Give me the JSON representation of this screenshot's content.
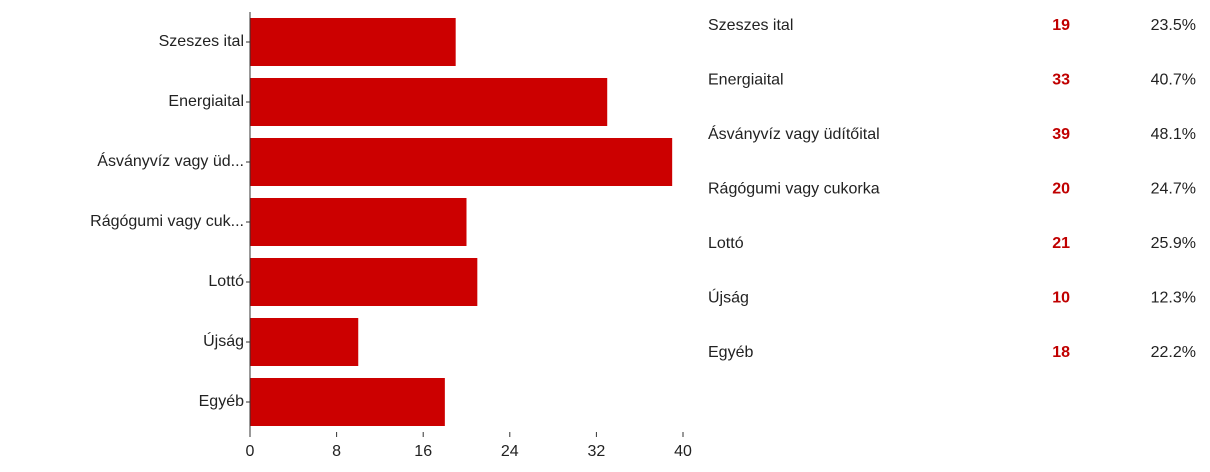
{
  "chart_data": {
    "type": "hbar",
    "categories": [
      "Szeszes ital",
      "Energiaital",
      "Ásványvíz vagy üd...",
      "Rágógumi vagy cuk...",
      "Lottó",
      "Újság",
      "Egyéb"
    ],
    "values": [
      19,
      33,
      39,
      20,
      21,
      10,
      18
    ],
    "color": "#cc0000",
    "xlim": [
      0,
      40
    ],
    "xticks": [
      0,
      8,
      16,
      24,
      32,
      40
    ],
    "grid": false
  },
  "table": {
    "rows": [
      {
        "name": "Szeszes ital",
        "percent": "23.5%"
      },
      {
        "name": "Energiaital",
        "percent": "40.7%"
      },
      {
        "name": "Ásványvíz vagy üdítőital",
        "percent": "48.1%"
      },
      {
        "name": "Rágógumi vagy cukorka",
        "percent": "24.7%"
      },
      {
        "name": "Lottó",
        "percent": "25.9%"
      },
      {
        "name": "Újság",
        "percent": "12.3%"
      },
      {
        "name": "Egyéb",
        "percent": "22.2%"
      }
    ]
  }
}
